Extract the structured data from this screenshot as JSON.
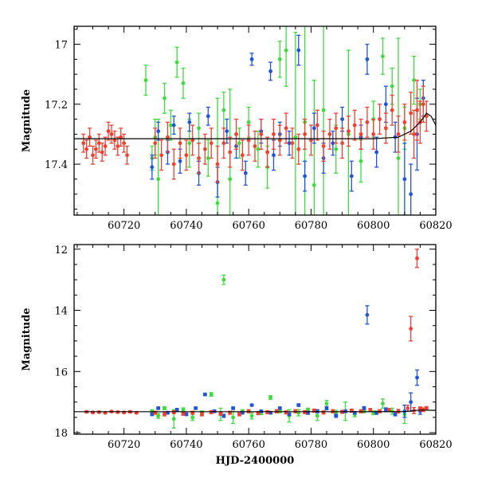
{
  "colors": {
    "frame": "#000000",
    "fit_curve": "#000000",
    "blue": "#1f55d8",
    "green": "#3ddc3d",
    "red": "#ef4030"
  },
  "chart_data": [
    {
      "type": "scatter",
      "xlabel": "",
      "ylabel": "Magnitude",
      "xlim": [
        60704,
        60820
      ],
      "ylim": [
        17.57,
        16.94
      ],
      "y_inverted": true,
      "x_ticks": [
        60720,
        60740,
        60760,
        60780,
        60800,
        60820
      ],
      "x_tick_labels": [
        "60720",
        "60740",
        "60760",
        "60780",
        "60800",
        "60820"
      ],
      "y_ticks": [
        17.0,
        17.2,
        17.4
      ],
      "y_tick_labels": [
        "17",
        "17.2",
        "17.4"
      ],
      "fit_curve": {
        "x": [
          60704,
          60720,
          60740,
          60760,
          60780,
          60800,
          60808,
          60812,
          60815,
          60817,
          60818.5,
          60820
        ],
        "y": [
          17.315,
          17.315,
          17.315,
          17.315,
          17.315,
          17.315,
          17.31,
          17.29,
          17.26,
          17.23,
          17.24,
          17.27
        ]
      },
      "series": [
        {
          "color_key": "green",
          "x": [
            60727,
            60729,
            60730,
            60731,
            60733,
            60735,
            60737,
            60739,
            60741,
            60744,
            60747,
            60750,
            60752,
            60754,
            60757,
            60760,
            60763,
            60766,
            60770,
            60772,
            60775,
            60778,
            60781,
            60784,
            60788,
            60792,
            60796,
            60800,
            60803,
            60806,
            60808,
            60810,
            60813,
            60815
          ],
          "y": [
            17.12,
            17.38,
            17.31,
            17.45,
            17.18,
            17.27,
            17.06,
            17.13,
            17.33,
            17.28,
            17.38,
            17.53,
            17.22,
            17.45,
            17.33,
            17.26,
            17.35,
            17.41,
            17.05,
            17.02,
            17.31,
            17.26,
            17.47,
            17.22,
            17.35,
            17.3,
            17.39,
            17.25,
            17.04,
            17.14,
            17.38,
            17.28,
            17.12,
            17.2
          ],
          "err": [
            0.05,
            0.04,
            0.06,
            0.2,
            0.05,
            0.05,
            0.05,
            0.05,
            0.08,
            0.05,
            0.06,
            0.35,
            0.06,
            0.3,
            0.05,
            0.05,
            0.06,
            0.07,
            0.06,
            0.12,
            0.35,
            0.4,
            0.35,
            0.35,
            0.08,
            0.28,
            0.07,
            0.06,
            0.06,
            0.06,
            0.4,
            0.07,
            0.08,
            0.05
          ]
        },
        {
          "color_key": "blue",
          "x": [
            60729,
            60731,
            60734,
            60736,
            60738,
            60741,
            60744,
            60747,
            60750,
            60753,
            60756,
            60759,
            60761,
            60764,
            60767,
            60768,
            60770,
            60773,
            60776,
            60778,
            60781,
            60784,
            60787,
            60790,
            60793,
            60796,
            60798,
            60801,
            60804,
            60807,
            60810,
            60812,
            60814,
            60816
          ],
          "y": [
            17.41,
            17.29,
            17.36,
            17.27,
            17.39,
            17.26,
            17.43,
            17.24,
            17.46,
            17.29,
            17.34,
            17.43,
            17.05,
            17.29,
            17.09,
            17.37,
            17.3,
            17.33,
            17.02,
            17.44,
            17.28,
            17.38,
            17.33,
            17.25,
            17.44,
            17.31,
            17.05,
            17.36,
            17.2,
            17.31,
            17.45,
            17.5,
            17.3,
            17.18
          ],
          "err": [
            0.04,
            0.03,
            0.04,
            0.03,
            0.04,
            0.03,
            0.04,
            0.03,
            0.05,
            0.04,
            0.04,
            0.04,
            0.02,
            0.04,
            0.03,
            0.05,
            0.04,
            0.04,
            0.05,
            0.05,
            0.05,
            0.05,
            0.04,
            0.04,
            0.05,
            0.04,
            0.05,
            0.05,
            0.06,
            0.05,
            0.12,
            0.1,
            0.12,
            0.06
          ]
        },
        {
          "color_key": "red",
          "x": [
            60707,
            60708,
            60709,
            60710,
            60711,
            60712,
            60713,
            60714,
            60715,
            60716,
            60717,
            60718,
            60719,
            60720,
            60721,
            60730,
            60732,
            60734,
            60736,
            60738,
            60740,
            60742,
            60744,
            60746,
            60748,
            60750,
            60752,
            60754,
            60756,
            60758,
            60760,
            60762,
            60764,
            60766,
            60768,
            60770,
            60772,
            60774,
            60776,
            60778,
            60780,
            60782,
            60784,
            60786,
            60788,
            60790,
            60792,
            60794,
            60796,
            60798,
            60800,
            60802,
            60804,
            60806,
            60808,
            60810,
            60812,
            60813,
            60814,
            60815,
            60816,
            60817
          ],
          "y": [
            17.33,
            17.35,
            17.31,
            17.37,
            17.35,
            17.33,
            17.36,
            17.34,
            17.29,
            17.3,
            17.32,
            17.34,
            17.31,
            17.33,
            17.37,
            17.33,
            17.37,
            17.31,
            17.4,
            17.33,
            17.37,
            17.32,
            17.38,
            17.35,
            17.33,
            17.4,
            17.33,
            17.36,
            17.3,
            17.37,
            17.32,
            17.34,
            17.3,
            17.36,
            17.3,
            17.32,
            17.28,
            17.33,
            17.35,
            17.3,
            17.32,
            17.27,
            17.34,
            17.3,
            17.28,
            17.33,
            17.29,
            17.27,
            17.3,
            17.26,
            17.3,
            17.25,
            17.28,
            17.22,
            17.3,
            17.26,
            17.23,
            17.3,
            17.22,
            17.26,
            17.2,
            17.24
          ],
          "err": [
            0.03,
            0.03,
            0.03,
            0.03,
            0.03,
            0.03,
            0.03,
            0.03,
            0.03,
            0.03,
            0.03,
            0.03,
            0.03,
            0.03,
            0.03,
            0.05,
            0.05,
            0.05,
            0.05,
            0.05,
            0.05,
            0.05,
            0.05,
            0.05,
            0.05,
            0.06,
            0.05,
            0.05,
            0.05,
            0.05,
            0.05,
            0.05,
            0.05,
            0.05,
            0.05,
            0.05,
            0.05,
            0.05,
            0.05,
            0.05,
            0.05,
            0.05,
            0.05,
            0.05,
            0.05,
            0.05,
            0.05,
            0.05,
            0.05,
            0.05,
            0.05,
            0.05,
            0.05,
            0.05,
            0.06,
            0.06,
            0.07,
            0.08,
            0.1,
            0.07,
            0.06,
            0.05
          ]
        }
      ]
    },
    {
      "type": "scatter",
      "xlabel": "HJD-2400000",
      "ylabel": "Magnitude",
      "xlim": [
        60704,
        60820
      ],
      "ylim": [
        18.05,
        11.85
      ],
      "y_inverted": true,
      "x_ticks": [
        60720,
        60740,
        60760,
        60780,
        60800,
        60820
      ],
      "x_tick_labels": [
        "60720",
        "60740",
        "60760",
        "60780",
        "60800",
        "60820"
      ],
      "y_ticks": [
        12,
        14,
        16,
        18
      ],
      "y_tick_labels": [
        "12",
        "14",
        "16",
        "18"
      ],
      "fit_curve": {
        "x": [
          60704,
          60720,
          60740,
          60760,
          60780,
          60800,
          60810,
          60815,
          60820
        ],
        "y": [
          17.315,
          17.315,
          17.315,
          17.315,
          17.315,
          17.315,
          17.31,
          17.26,
          17.27
        ]
      },
      "series": [
        {
          "color_key": "green",
          "x": [
            60729,
            60731,
            60733,
            60736,
            60739,
            60742,
            60745,
            60748,
            60751,
            60752,
            60755,
            60758,
            60761,
            60764,
            60767,
            60770,
            60773,
            60776,
            60779,
            60782,
            60785,
            60788,
            60791,
            60794,
            60797,
            60800,
            60803,
            60806,
            60810
          ],
          "y": [
            17.3,
            17.45,
            17.2,
            17.55,
            17.25,
            17.5,
            17.35,
            16.75,
            17.4,
            13.0,
            17.5,
            17.3,
            17.45,
            17.35,
            16.85,
            17.3,
            17.45,
            17.35,
            17.25,
            17.45,
            17.05,
            17.35,
            17.3,
            17.4,
            17.3,
            17.35,
            17.05,
            17.3,
            17.4
          ],
          "err": [
            0.05,
            0.08,
            0.05,
            0.3,
            0.06,
            0.1,
            0.06,
            0.06,
            0.2,
            0.15,
            0.2,
            0.05,
            0.1,
            0.06,
            0.06,
            0.05,
            0.2,
            0.1,
            0.05,
            0.15,
            0.1,
            0.08,
            0.3,
            0.08,
            0.05,
            0.06,
            0.15,
            0.1,
            0.3
          ]
        },
        {
          "color_key": "blue",
          "x": [
            60729,
            60731,
            60734,
            60737,
            60740,
            60743,
            60746,
            60749,
            60752,
            60755,
            60758,
            60761,
            60764,
            60767,
            60770,
            60773,
            60776,
            60779,
            60782,
            60785,
            60788,
            60791,
            60794,
            60797,
            60798,
            60801,
            60804,
            60807,
            60810,
            60812,
            60814,
            60815
          ],
          "y": [
            17.4,
            17.2,
            17.35,
            17.25,
            17.4,
            17.2,
            16.75,
            17.3,
            17.45,
            17.2,
            17.35,
            17.1,
            17.3,
            17.35,
            17.2,
            17.4,
            17.1,
            17.35,
            17.3,
            17.2,
            17.45,
            17.3,
            17.35,
            17.2,
            14.15,
            17.35,
            17.25,
            17.4,
            17.3,
            17.0,
            16.2,
            17.3
          ],
          "err": [
            0.04,
            0.04,
            0.04,
            0.04,
            0.04,
            0.04,
            0.04,
            0.04,
            0.05,
            0.04,
            0.04,
            0.03,
            0.04,
            0.04,
            0.04,
            0.04,
            0.04,
            0.05,
            0.05,
            0.05,
            0.05,
            0.04,
            0.04,
            0.05,
            0.3,
            0.05,
            0.06,
            0.05,
            0.2,
            0.3,
            0.25,
            0.1
          ]
        },
        {
          "color_key": "red",
          "x": [
            60708,
            60710,
            60712,
            60714,
            60716,
            60718,
            60720,
            60722,
            60724,
            60730,
            60733,
            60736,
            60739,
            60742,
            60745,
            60748,
            60751,
            60754,
            60757,
            60760,
            60763,
            60766,
            60769,
            60772,
            60775,
            60778,
            60781,
            60784,
            60787,
            60790,
            60793,
            60796,
            60799,
            60802,
            60805,
            60808,
            60811,
            60812,
            60813,
            60814,
            60815,
            60816,
            60817
          ],
          "y": [
            17.32,
            17.34,
            17.33,
            17.35,
            17.31,
            17.33,
            17.34,
            17.32,
            17.35,
            17.35,
            17.4,
            17.33,
            17.38,
            17.35,
            17.4,
            17.33,
            17.38,
            17.35,
            17.4,
            17.3,
            17.36,
            17.33,
            17.3,
            17.34,
            17.3,
            17.33,
            17.28,
            17.34,
            17.3,
            17.32,
            17.28,
            17.3,
            17.26,
            17.3,
            17.26,
            17.3,
            17.2,
            14.6,
            17.28,
            12.3,
            17.22,
            17.25,
            17.2
          ],
          "err": [
            0.03,
            0.03,
            0.03,
            0.03,
            0.03,
            0.03,
            0.03,
            0.03,
            0.03,
            0.05,
            0.05,
            0.05,
            0.05,
            0.05,
            0.05,
            0.05,
            0.05,
            0.05,
            0.05,
            0.05,
            0.05,
            0.05,
            0.05,
            0.05,
            0.05,
            0.05,
            0.05,
            0.05,
            0.05,
            0.05,
            0.05,
            0.05,
            0.05,
            0.05,
            0.05,
            0.06,
            0.1,
            0.4,
            0.1,
            0.3,
            0.06,
            0.06,
            0.05
          ]
        }
      ]
    }
  ]
}
